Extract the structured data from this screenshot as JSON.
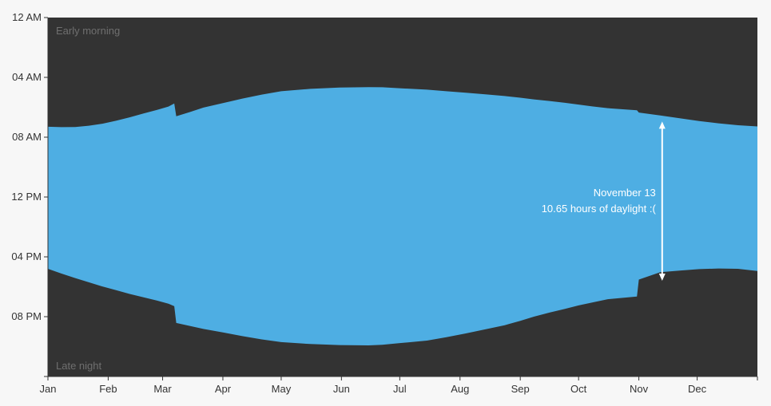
{
  "chart_data": {
    "type": "area",
    "title": "",
    "xlabel": "",
    "ylabel": "",
    "x_ticks": [
      "Jan",
      "Feb",
      "Mar",
      "Apr",
      "May",
      "Jun",
      "Jul",
      "Aug",
      "Sep",
      "Oct",
      "Nov",
      "Dec"
    ],
    "y_ticks": [
      "12 AM",
      "04 AM",
      "08 AM",
      "12 PM",
      "04 PM",
      "08 PM"
    ],
    "ylim_hours": [
      0,
      24
    ],
    "x_unit": "day_of_year",
    "xlim_days": [
      0,
      365
    ],
    "month_start_days": [
      0,
      31,
      59,
      90,
      120,
      151,
      181,
      212,
      243,
      273,
      304,
      334
    ],
    "dst_start_day": 66,
    "dst_end_day": 304,
    "series": [
      {
        "name": "",
        "sunrise_hours": [
          7.3,
          7.33,
          7.32,
          7.23,
          7.1,
          6.9,
          6.67,
          6.42,
          6.18,
          5.95,
          5.75,
          6.6,
          6.32,
          6.02,
          5.72,
          5.42,
          5.15,
          4.93,
          4.77,
          4.68,
          4.65,
          4.66,
          4.72,
          4.82,
          4.93,
          5.03,
          5.13,
          5.25,
          5.36,
          5.47,
          5.58,
          5.7,
          5.82,
          5.94,
          6.06,
          6.2,
          6.35,
          6.55,
          6.73,
          6.92,
          7.07,
          7.2,
          7.28
        ],
        "sunset_hours": [
          16.8,
          17.12,
          17.42,
          17.7,
          17.98,
          18.23,
          18.48,
          18.7,
          18.92,
          19.13,
          19.3,
          20.42,
          20.62,
          20.82,
          21.05,
          21.3,
          21.52,
          21.7,
          21.83,
          21.9,
          21.92,
          21.88,
          21.78,
          21.6,
          21.37,
          21.12,
          20.85,
          20.57,
          20.28,
          20.0,
          19.73,
          19.48,
          19.25,
          19.05,
          18.83,
          18.65,
          17.52,
          17.03,
          16.92,
          16.82,
          16.78,
          16.8,
          16.95
        ],
        "days": [
          0,
          7,
          14,
          21,
          28,
          35,
          42,
          49,
          56,
          62,
          65,
          66,
          73,
          80,
          90,
          100,
          110,
          120,
          135,
          150,
          165,
          172,
          180,
          195,
          205,
          215,
          225,
          235,
          243,
          250,
          258,
          266,
          273,
          280,
          288,
          303,
          304,
          315,
          325,
          335,
          345,
          355,
          365
        ]
      }
    ],
    "colors": {
      "daylight": "#4eaee3",
      "night": "#333333",
      "background": "#f7f7f7",
      "axis": "#333333",
      "annotation": "#ffffff"
    },
    "grid": false,
    "corner_labels": {
      "top": "Early morning",
      "bottom": "Late night"
    },
    "annotation": {
      "day": 316,
      "sunrise_hour": 6.95,
      "sunset_hour": 17.6,
      "date_text": "November 13",
      "detail_text": "10.65 hours of daylight :("
    }
  }
}
